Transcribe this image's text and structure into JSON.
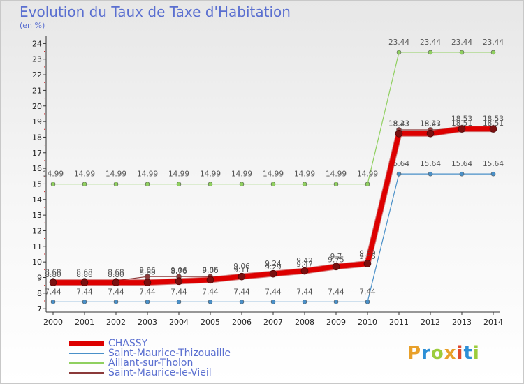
{
  "title": "Evolution du Taux de Taxe d'Habitation",
  "unit_label": "(en %)",
  "logo": {
    "text": "Proxiti",
    "colors": [
      "#e8a02a",
      "#2d8fd6",
      "#9ccc3c",
      "#e8a02a",
      "#e04a2e",
      "#2d8fd6",
      "#9ccc3c"
    ]
  },
  "chart_data": {
    "type": "line",
    "x": [
      "2000",
      "2001",
      "2002",
      "2003",
      "2004",
      "2005",
      "2006",
      "2007",
      "2008",
      "2009",
      "2010",
      "2011",
      "2012",
      "2013",
      "2014"
    ],
    "ylim": [
      7,
      24
    ],
    "yticks": [
      7,
      8,
      9,
      10,
      11,
      12,
      13,
      14,
      15,
      16,
      17,
      18,
      19,
      20,
      21,
      22,
      23,
      24
    ],
    "grid": false,
    "legend_position": "bottom-left",
    "series": [
      {
        "name": "CHASSY",
        "color": "#dd0000",
        "values": [
          8.68,
          8.68,
          8.68,
          8.68,
          8.76,
          8.85,
          9.06,
          9.24,
          9.42,
          9.7,
          9.89,
          18.23,
          18.23,
          18.53,
          18.53
        ],
        "labels": [
          "8.68",
          "8.68",
          "8.68",
          "8.68",
          "8.76",
          "8.85",
          "9.06",
          "9.24",
          "9.42",
          "9.7",
          "9.89",
          "18.23",
          "18.23",
          "18.53",
          "18.53"
        ]
      },
      {
        "name": "Saint-Maurice-Thizouaille",
        "color": "#4a90c8",
        "values": [
          7.44,
          7.44,
          7.44,
          7.44,
          7.44,
          7.44,
          7.44,
          7.44,
          7.44,
          7.44,
          7.44,
          15.64,
          15.64,
          15.64,
          15.64
        ],
        "labels": [
          "7.44",
          "7.44",
          "7.44",
          "7.44",
          "7.44",
          "7.44",
          "7.44",
          "7.44",
          "7.44",
          "7.44",
          "7.44",
          "15.64",
          "15.64",
          "15.64",
          "15.64"
        ]
      },
      {
        "name": "Aillant-sur-Tholon",
        "color": "#90d060",
        "values": [
          14.99,
          14.99,
          14.99,
          14.99,
          14.99,
          14.99,
          14.99,
          14.99,
          14.99,
          14.99,
          14.99,
          23.44,
          23.44,
          23.44,
          23.44
        ],
        "labels": [
          "14.99",
          "14.99",
          "14.99",
          "14.99",
          "14.99",
          "14.99",
          "14.99",
          "14.99",
          "14.99",
          "14.99",
          "14.99",
          "23.44",
          "23.44",
          "23.44",
          "23.44"
        ]
      },
      {
        "name": "Saint-Maurice-le-Vieil",
        "color": "#8b3a3a",
        "values": [
          8.8,
          8.8,
          8.8,
          9.06,
          9.06,
          9.06,
          9.11,
          9.29,
          9.47,
          9.75,
          9.96,
          18.47,
          18.47,
          18.51,
          18.51
        ],
        "labels": [
          "8.80",
          "8.80",
          "8.80",
          "9.06",
          "9.06",
          "9.06",
          "9.11",
          "9.29",
          "9.47",
          "9.75",
          "9.96",
          "18.47",
          "18.47",
          "18.51",
          "18.51"
        ]
      }
    ]
  }
}
